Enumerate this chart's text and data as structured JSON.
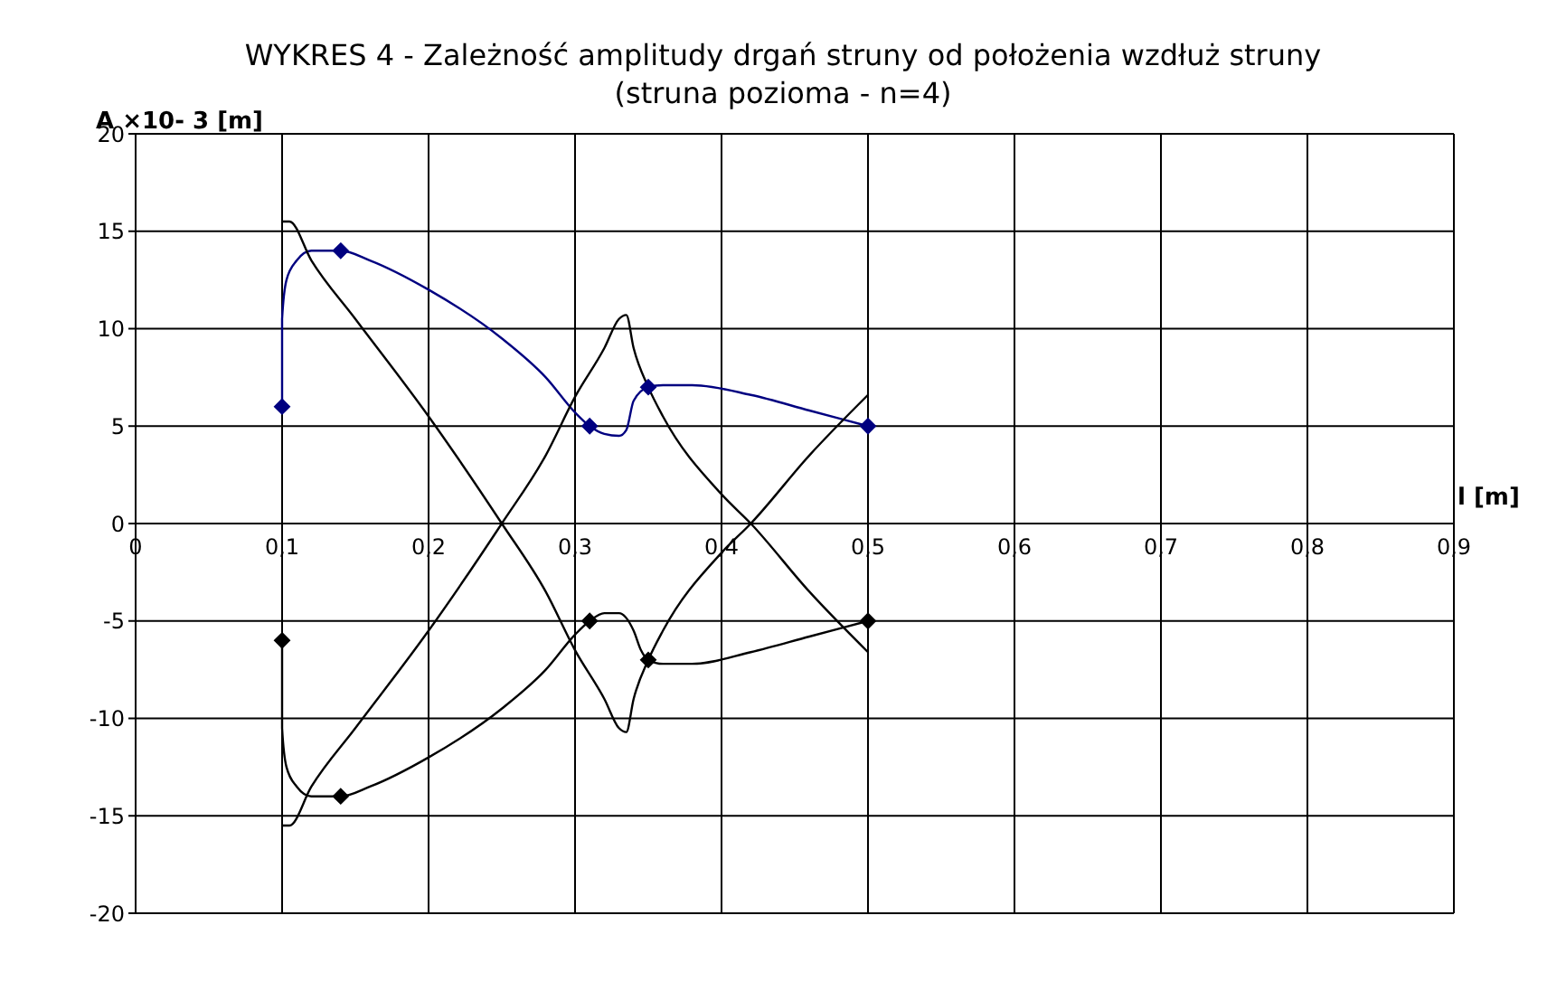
{
  "chart_data": {
    "type": "line",
    "title": "WYKRES 4  -  Zależność amplitudy drgań struny od położenia wzdłuż struny",
    "subtitle": "(struna pozioma  - n=4)",
    "xlabel": "l [m]",
    "ylabel": "A ×10- 3 [m]",
    "xlim": [
      0,
      0.9
    ],
    "xticks": [
      0,
      {
        "value": 0.1,
        "label": "0,1"
      },
      {
        "value": 0.2,
        "label": "0,2"
      },
      {
        "value": 0.3,
        "label": "0,3"
      },
      {
        "value": 0.4,
        "label": "0,4"
      },
      {
        "value": 0.5,
        "label": "0,5"
      },
      {
        "value": 0.6,
        "label": "0,6"
      },
      {
        "value": 0.7,
        "label": "0,7"
      },
      {
        "value": 0.8,
        "label": "0,8"
      },
      {
        "value": 0.9,
        "label": "0,9"
      }
    ],
    "ylim": [
      -20,
      20
    ],
    "yticks": [
      -20,
      -15,
      -10,
      -5,
      0,
      5,
      10,
      15,
      20
    ],
    "grid": true,
    "line_style": "solid",
    "series": [
      {
        "type": "scatter",
        "color": "#000080",
        "marker": "diamond",
        "x": [
          0.1,
          0.14,
          0.31,
          0.35,
          0.5
        ],
        "values": [
          6,
          14,
          5,
          7,
          5
        ]
      },
      {
        "type": "scatter",
        "color": "#000000",
        "marker": "diamond",
        "x": [
          0.1,
          0.14,
          0.31,
          0.35,
          0.5
        ],
        "values": [
          -6,
          -14,
          -5,
          -7,
          -5
        ]
      },
      {
        "color": "#000080",
        "marker": "none",
        "x": [
          0.1,
          0.1,
          0.103,
          0.11,
          0.12,
          0.14,
          0.16,
          0.2,
          0.25,
          0.28,
          0.3,
          0.31,
          0.32,
          0.33,
          0.335,
          0.34,
          0.35,
          0.36,
          0.38,
          0.42,
          0.46,
          0.5
        ],
        "values": [
          6,
          10.5,
          12.5,
          13.5,
          14,
          14,
          13.5,
          12,
          9.5,
          7.5,
          5.7,
          5,
          4.6,
          4.5,
          4.8,
          6.3,
          7,
          7.1,
          7.1,
          6.6,
          5.8,
          5
        ]
      },
      {
        "color": "#000000",
        "marker": "none",
        "x": [
          0.1,
          0.1,
          0.103,
          0.11,
          0.12,
          0.14,
          0.16,
          0.2,
          0.25,
          0.28,
          0.3,
          0.31,
          0.32,
          0.33,
          0.34,
          0.345,
          0.35,
          0.36,
          0.38,
          0.42,
          0.46,
          0.5
        ],
        "values": [
          -6,
          -10.5,
          -12.5,
          -13.5,
          -14,
          -14,
          -13.5,
          -12,
          -9.5,
          -7.5,
          -5.7,
          -5,
          -4.6,
          -4.6,
          -5.5,
          -6.5,
          -7,
          -7.2,
          -7.2,
          -6.6,
          -5.8,
          -5
        ]
      },
      {
        "color": "#000000",
        "marker": "none",
        "x": [
          0.1,
          0.105,
          0.12,
          0.15,
          0.2,
          0.25,
          0.28,
          0.3,
          0.32,
          0.33,
          0.335,
          0.34,
          0.35,
          0.36,
          0.4,
          0.42,
          0.46,
          0.5
        ],
        "values": [
          15.5,
          15.5,
          13.5,
          10.5,
          5.5,
          0,
          -3.5,
          -6.5,
          -9,
          -10.5,
          -10.7,
          -9,
          -7,
          -5.5,
          -1.5,
          0,
          3.5,
          6.6
        ]
      },
      {
        "color": "#000000",
        "marker": "none",
        "x": [
          0.1,
          0.105,
          0.12,
          0.15,
          0.2,
          0.25,
          0.28,
          0.3,
          0.32,
          0.33,
          0.335,
          0.34,
          0.35,
          0.36,
          0.4,
          0.42,
          0.46,
          0.5
        ],
        "values": [
          -15.5,
          -15.5,
          -13.5,
          -10.5,
          -5.5,
          0,
          3.5,
          6.5,
          9,
          10.5,
          10.7,
          9,
          7,
          5.5,
          1.5,
          0,
          -3.5,
          -6.6
        ]
      }
    ]
  }
}
